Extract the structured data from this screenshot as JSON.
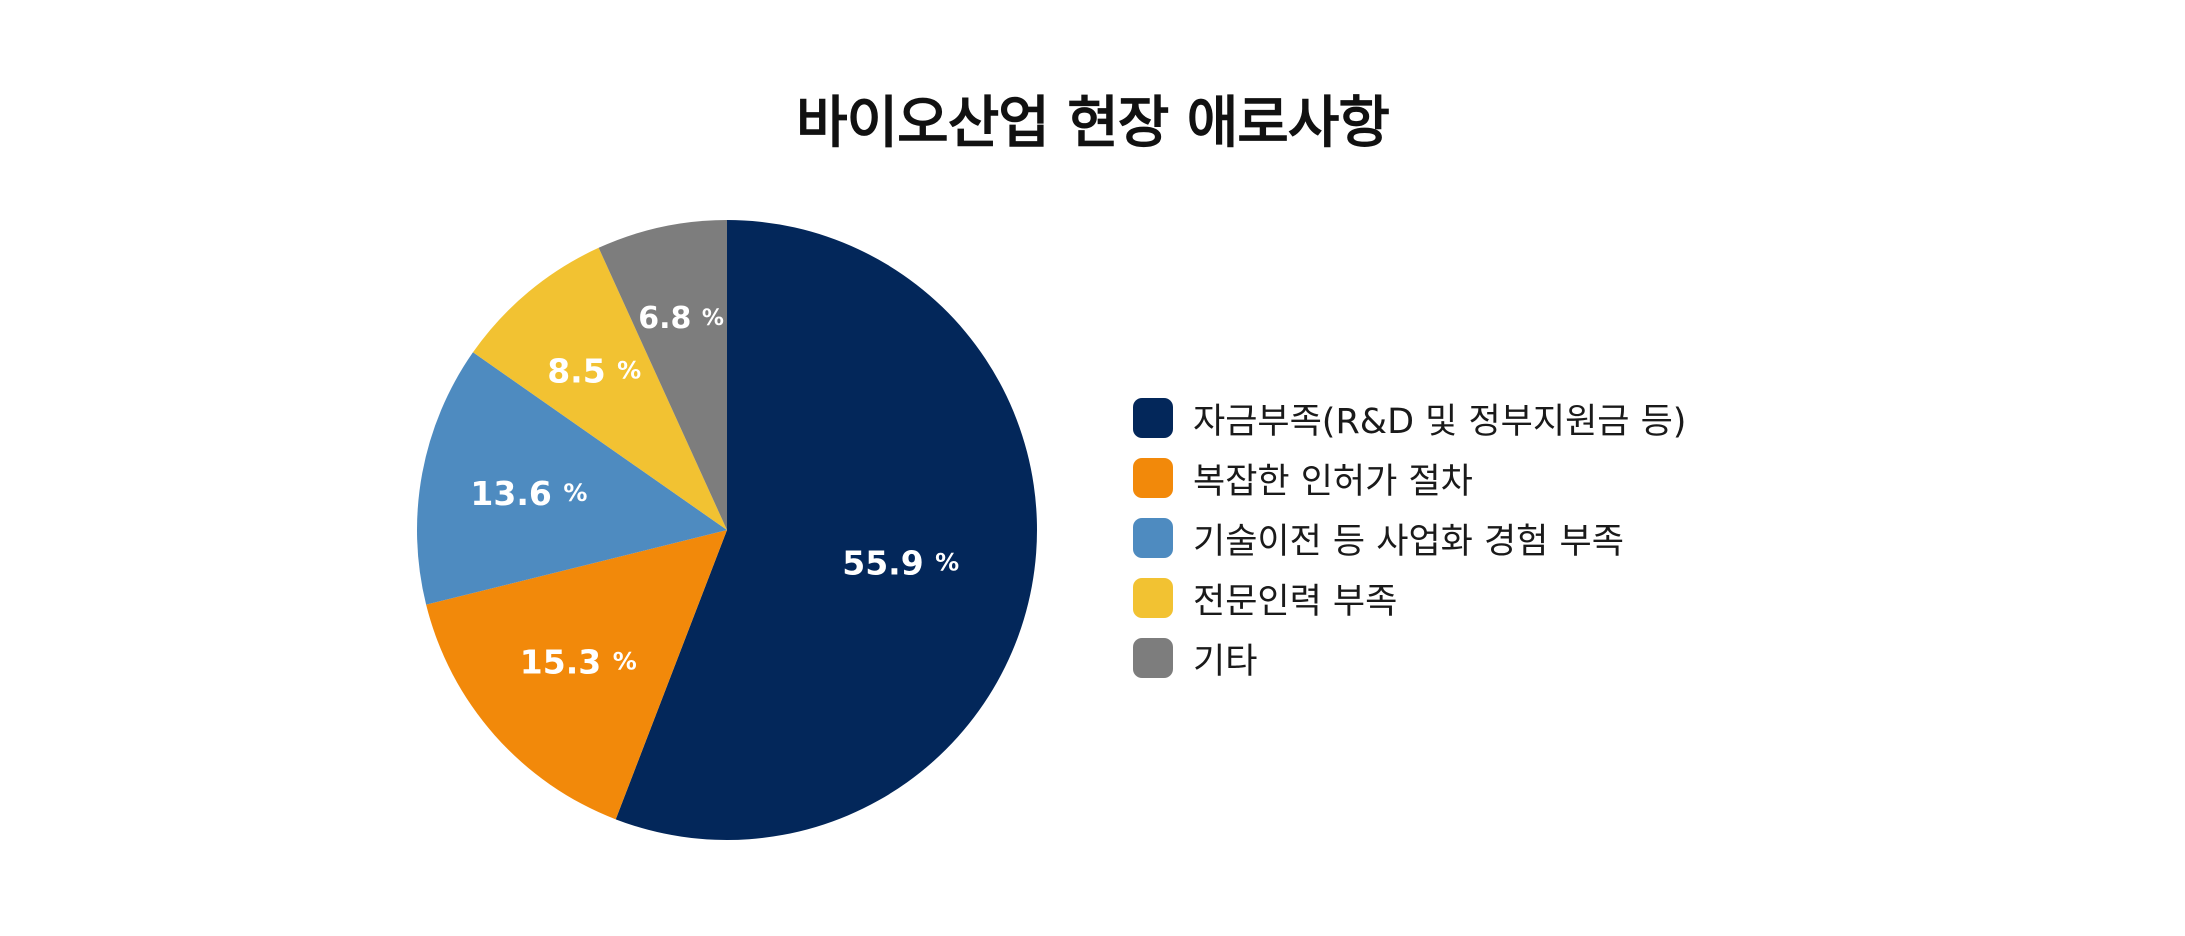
{
  "chart_data": {
    "type": "pie",
    "title": "바이오산업 현장 애로사항",
    "unit": "%",
    "legend_position": "right",
    "slices": [
      {
        "label": "자금부족(R&D 및 정부지원금 등)",
        "value": 55.9,
        "value_text": "55.9",
        "color": "#03275a"
      },
      {
        "label": "복잡한 인허가 절차",
        "value": 15.3,
        "value_text": "15.3",
        "color": "#f2890a"
      },
      {
        "label": "기술이전 등 사업화 경험 부족",
        "value": 13.6,
        "value_text": "13.6",
        "color": "#4e8bc0"
      },
      {
        "label": "전문인력 부족",
        "value": 8.5,
        "value_text": "8.5",
        "color": "#f2c232"
      },
      {
        "label": "기타",
        "value": 6.8,
        "value_text": "6.8",
        "color": "#7d7d7d"
      }
    ]
  }
}
